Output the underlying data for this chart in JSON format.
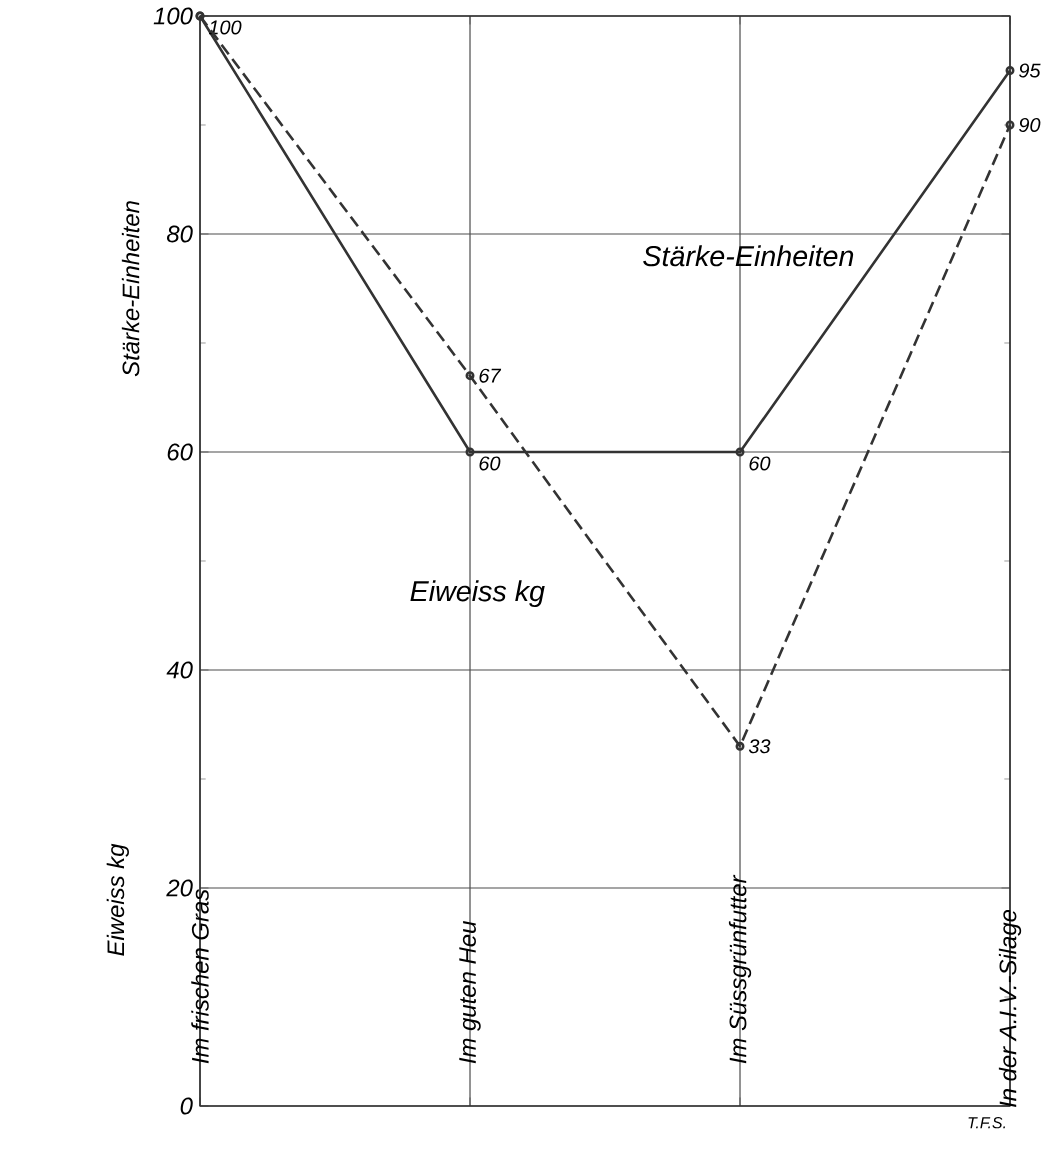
{
  "chart_data": {
    "type": "line",
    "ylabel": "Stärke-Einheiten",
    "categories": [
      "Im frischen Gras",
      "Im guten Heu",
      "Im Süssgrünfutter",
      "In der A.I.V.-Silage"
    ],
    "series": [
      {
        "name": "Stärke-Einheiten",
        "color": "#333333",
        "values": [
          100,
          60,
          60,
          95
        ],
        "line_style": "solid"
      },
      {
        "name": "Eiweiss kg",
        "color": "#333333",
        "values": [
          100,
          67,
          33,
          90
        ],
        "line_style": "dashed",
        "value_labels": [
          null,
          "67",
          "33",
          "90"
        ]
      }
    ],
    "ylim": [
      0,
      100
    ],
    "yticks": [
      0,
      20,
      40,
      60,
      80,
      100
    ],
    "grid": true,
    "marker": "circle",
    "data_labels": true,
    "annotations": [
      "Eiweiss kg",
      "T.F.S."
    ]
  }
}
